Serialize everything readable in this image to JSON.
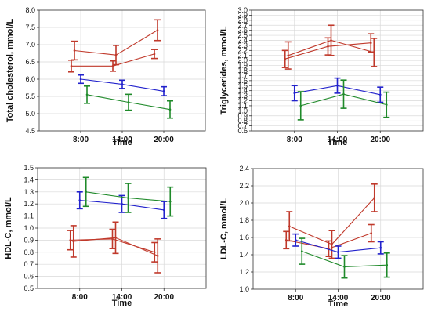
{
  "chart_data": [
    {
      "type": "line",
      "ylabel": "Total cholesterol, mmol/L",
      "xlabel": "Time",
      "categories": [
        "8:00",
        "14:00",
        "20:00"
      ],
      "ylim": [
        4.5,
        8.0
      ],
      "yticks": [
        "4.5",
        "5.0",
        "5.5",
        "6.0",
        "6.5",
        "7.0",
        "7.5",
        "8.0"
      ],
      "grid": true,
      "error_bars": true,
      "series": [
        {
          "color": "#c0392b",
          "points": [
            {
              "x": "8:00",
              "y": 6.38,
              "err": 0.17
            },
            {
              "x": "14:00",
              "y": 6.38,
              "err": 0.15
            },
            {
              "x": "20:00",
              "y": 6.73,
              "err": 0.13
            }
          ]
        },
        {
          "color": "#c0392b",
          "points": [
            {
              "x": "8:00",
              "y": 6.83,
              "err": 0.27
            },
            {
              "x": "14:00",
              "y": 6.7,
              "err": 0.28
            },
            {
              "x": "20:00",
              "y": 7.42,
              "err": 0.3
            }
          ]
        },
        {
          "color": "#2222cc",
          "points": [
            {
              "x": "8:00",
              "y": 6.0,
              "err": 0.12
            },
            {
              "x": "14:00",
              "y": 5.85,
              "err": 0.12
            },
            {
              "x": "20:00",
              "y": 5.65,
              "err": 0.13
            }
          ]
        },
        {
          "color": "#1f8a2a",
          "points": [
            {
              "x": "8:00",
              "y": 5.55,
              "err": 0.25
            },
            {
              "x": "14:00",
              "y": 5.33,
              "err": 0.23
            },
            {
              "x": "20:00",
              "y": 5.12,
              "err": 0.25
            }
          ]
        }
      ]
    },
    {
      "type": "line",
      "ylabel": "Triglycerides, mmol/L",
      "xlabel": "Time",
      "categories": [
        "8:00",
        "14:00",
        "20:00"
      ],
      "ylim": [
        0.6,
        3.0
      ],
      "yticks": [
        "0.6",
        "0.7",
        "0.8",
        "0.9",
        "1.0",
        "1.1",
        "1.2",
        "1.3",
        "1.4",
        "1.5",
        "1.6",
        "1.7",
        "1.8",
        "1.9",
        "2.0",
        "2.1",
        "2.2",
        "2.3",
        "2.4",
        "2.5",
        "2.6",
        "2.7",
        "2.8",
        "2.9",
        "3.0"
      ],
      "grid": true,
      "error_bars": true,
      "series": [
        {
          "color": "#c0392b",
          "points": [
            {
              "x": "8:00",
              "y": 2.03,
              "err": 0.17
            },
            {
              "x": "14:00",
              "y": 2.28,
              "err": 0.17
            },
            {
              "x": "20:00",
              "y": 2.35,
              "err": 0.18
            }
          ]
        },
        {
          "color": "#c0392b",
          "points": [
            {
              "x": "8:00",
              "y": 2.1,
              "err": 0.27
            },
            {
              "x": "14:00",
              "y": 2.4,
              "err": 0.3
            },
            {
              "x": "20:00",
              "y": 2.16,
              "err": 0.28
            }
          ]
        },
        {
          "color": "#2222cc",
          "points": [
            {
              "x": "8:00",
              "y": 1.35,
              "err": 0.15
            },
            {
              "x": "14:00",
              "y": 1.5,
              "err": 0.15
            },
            {
              "x": "20:00",
              "y": 1.32,
              "err": 0.15
            }
          ]
        },
        {
          "color": "#1f8a2a",
          "points": [
            {
              "x": "8:00",
              "y": 1.1,
              "err": 0.28
            },
            {
              "x": "14:00",
              "y": 1.33,
              "err": 0.28
            },
            {
              "x": "20:00",
              "y": 1.12,
              "err": 0.25
            }
          ]
        }
      ]
    },
    {
      "type": "line",
      "ylabel": "HDL-C, mmol/L",
      "xlabel": "Time",
      "categories": [
        "8:00",
        "14:00",
        "20:00"
      ],
      "ylim": [
        0.5,
        1.5
      ],
      "yticks": [
        "0.5",
        "0.6",
        "0.7",
        "0.8",
        "0.9",
        "1.0",
        "1.1",
        "1.2",
        "1.3",
        "1.4",
        "1.5"
      ],
      "grid": true,
      "error_bars": true,
      "series": [
        {
          "color": "#c0392b",
          "points": [
            {
              "x": "8:00",
              "y": 0.9,
              "err": 0.08
            },
            {
              "x": "14:00",
              "y": 0.91,
              "err": 0.08
            },
            {
              "x": "20:00",
              "y": 0.8,
              "err": 0.08
            }
          ]
        },
        {
          "color": "#c0392b",
          "points": [
            {
              "x": "8:00",
              "y": 0.89,
              "err": 0.13
            },
            {
              "x": "14:00",
              "y": 0.92,
              "err": 0.13
            },
            {
              "x": "20:00",
              "y": 0.77,
              "err": 0.14
            }
          ]
        },
        {
          "color": "#2222cc",
          "points": [
            {
              "x": "8:00",
              "y": 1.23,
              "err": 0.07
            },
            {
              "x": "14:00",
              "y": 1.2,
              "err": 0.07
            },
            {
              "x": "20:00",
              "y": 1.15,
              "err": 0.07
            }
          ]
        },
        {
          "color": "#1f8a2a",
          "points": [
            {
              "x": "8:00",
              "y": 1.3,
              "err": 0.12
            },
            {
              "x": "14:00",
              "y": 1.25,
              "err": 0.12
            },
            {
              "x": "20:00",
              "y": 1.22,
              "err": 0.12
            }
          ]
        }
      ]
    },
    {
      "type": "line",
      "ylabel": "LDL-C, mmol/L",
      "xlabel": "Time",
      "categories": [
        "8:00",
        "14:00",
        "20:00"
      ],
      "ylim": [
        1.0,
        2.4
      ],
      "yticks": [
        "1.0",
        "1.2",
        "1.4",
        "1.6",
        "1.8",
        "2.0",
        "2.2",
        "2.4"
      ],
      "grid": true,
      "error_bars": true,
      "series": [
        {
          "color": "#c0392b",
          "points": [
            {
              "x": "8:00",
              "y": 1.57,
              "err": 0.1
            },
            {
              "x": "14:00",
              "y": 1.47,
              "err": 0.09
            },
            {
              "x": "20:00",
              "y": 1.65,
              "err": 0.1
            }
          ]
        },
        {
          "color": "#c0392b",
          "points": [
            {
              "x": "8:00",
              "y": 1.73,
              "err": 0.17
            },
            {
              "x": "14:00",
              "y": 1.52,
              "err": 0.16
            },
            {
              "x": "20:00",
              "y": 2.06,
              "err": 0.16
            }
          ]
        },
        {
          "color": "#2222cc",
          "points": [
            {
              "x": "8:00",
              "y": 1.57,
              "err": 0.07
            },
            {
              "x": "14:00",
              "y": 1.43,
              "err": 0.07
            },
            {
              "x": "20:00",
              "y": 1.48,
              "err": 0.07
            }
          ]
        },
        {
          "color": "#1f8a2a",
          "points": [
            {
              "x": "8:00",
              "y": 1.44,
              "err": 0.15
            },
            {
              "x": "14:00",
              "y": 1.26,
              "err": 0.13
            },
            {
              "x": "20:00",
              "y": 1.28,
              "err": 0.14
            }
          ]
        }
      ]
    }
  ]
}
